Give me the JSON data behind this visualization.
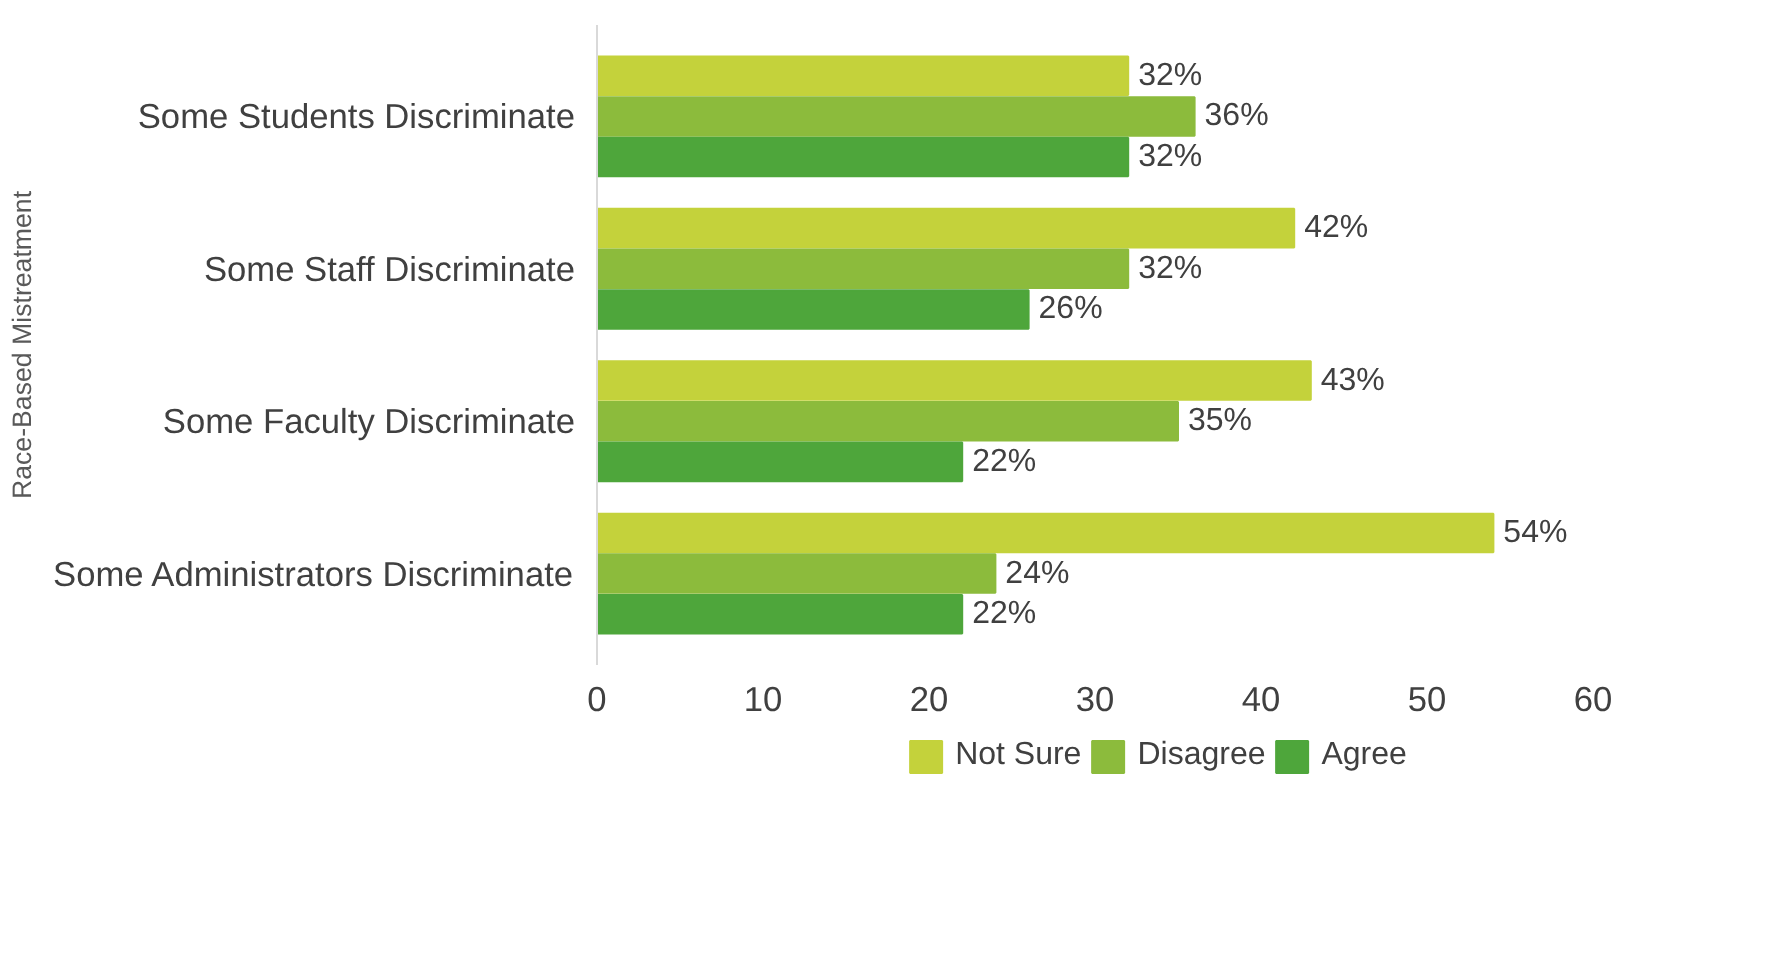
{
  "chart_data": {
    "type": "bar",
    "orientation": "horizontal",
    "ylabel": "Race-Based Mistreatment",
    "categories": [
      "Some Students Discriminate",
      "Some Staff Discriminate",
      "Some Faculty Discriminate",
      "Some Administrators Discriminate"
    ],
    "series": [
      {
        "name": "Not Sure",
        "color": "#c4d23b",
        "values": [
          32,
          42,
          43,
          54
        ],
        "value_labels": [
          "32%",
          "42%",
          "43%",
          "54%"
        ]
      },
      {
        "name": "Disagree",
        "color": "#8cbb3c",
        "values": [
          36,
          32,
          35,
          24
        ],
        "value_labels": [
          "36%",
          "32%",
          "35%",
          "24%"
        ]
      },
      {
        "name": "Agree",
        "color": "#4ea63b",
        "values": [
          32,
          26,
          22,
          22
        ],
        "value_labels": [
          "32%",
          "26%",
          "22%",
          "22%"
        ]
      }
    ],
    "xlim": [
      0,
      60
    ],
    "xticks": [
      0,
      10,
      20,
      30,
      40,
      50,
      60
    ],
    "grid": false,
    "legend": "bottom"
  }
}
